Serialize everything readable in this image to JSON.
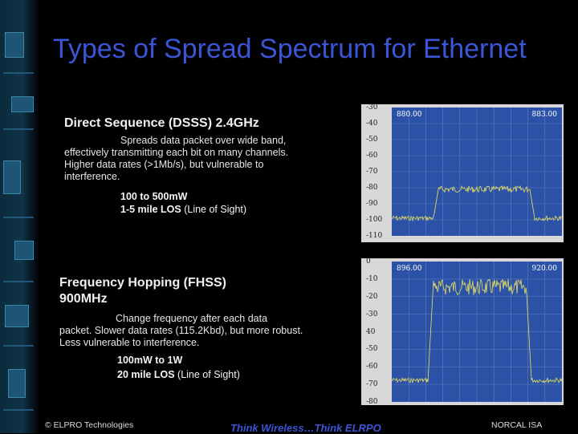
{
  "title": "Types of Spread Spectrum for Ethernet",
  "dsss": {
    "heading": "Direct Sequence  (DSSS) 2.4GHz",
    "desc_first": "Spreads data packet over wide band,",
    "desc_rest": "effectively transmitting each bit on many channels.  Higher data rates (>1Mb/s), but vulnerable to interference.",
    "power": "100 to 500mW",
    "range_bold": "1-5 mile LOS",
    "range_rest": " (Line of Sight)"
  },
  "fhss": {
    "heading_line1": "Frequency Hopping (FHSS)",
    "heading_line2": "900MHz",
    "desc_first": "Change frequency after each data",
    "desc_rest": "packet.  Slower data rates (115.2Kbd), but more robust.  Less vulnerable to interference.",
    "power": "100mW to 1W",
    "range_bold": "20 mile LOS",
    "range_rest": " (Line of Sight)"
  },
  "plot_dsss": {
    "y_labels": [
      "-30",
      "-40",
      "-50",
      "-60",
      "-70",
      "-80",
      "-90",
      "-100",
      "-110"
    ],
    "f_start": "880.00",
    "f_end": "883.00"
  },
  "plot_fhss": {
    "y_labels": [
      "0",
      "-10",
      "-20",
      "-30",
      "40",
      "-50",
      "-60",
      "-70",
      "-80"
    ],
    "f_start": "896.00",
    "f_end": "920.00"
  },
  "footer": {
    "left": "© ELPRO Technologies",
    "center": "Think Wireless…Think ELRPO",
    "right": "NORCAL ISA"
  },
  "colors": {
    "title": "#3b55d4",
    "screen": "#2b52a6",
    "trace": "#e8e060"
  }
}
